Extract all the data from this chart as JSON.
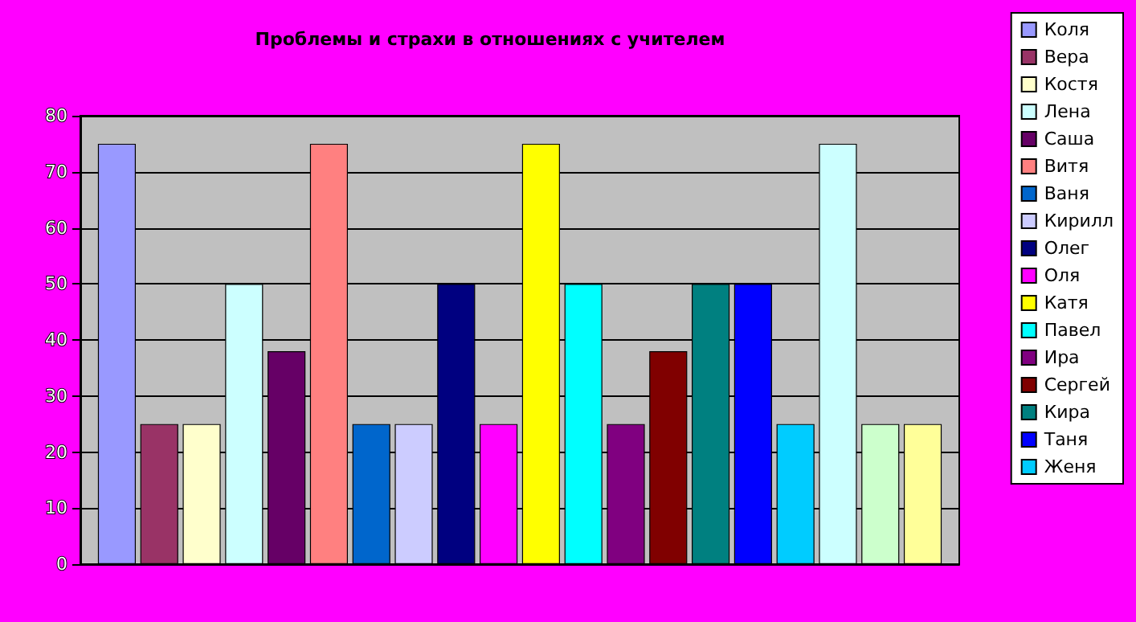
{
  "chart_data": {
    "type": "bar",
    "title": "Проблемы и страхи в отношениях с учителем",
    "categories": [
      null
    ],
    "ylim": [
      0,
      80
    ],
    "yticks": [
      0,
      10,
      20,
      30,
      40,
      50,
      60,
      70,
      80
    ],
    "grid": "y",
    "legend": "right",
    "series": [
      {
        "name": "Коля",
        "color": "#9999ff",
        "values": [
          75
        ]
      },
      {
        "name": "Вера",
        "color": "#993366",
        "values": [
          25
        ]
      },
      {
        "name": "Костя",
        "color": "#ffffcc",
        "values": [
          25
        ]
      },
      {
        "name": "Лена",
        "color": "#ccffff",
        "values": [
          50
        ]
      },
      {
        "name": "Саша",
        "color": "#660066",
        "values": [
          38
        ]
      },
      {
        "name": "Витя",
        "color": "#ff8080",
        "values": [
          75
        ]
      },
      {
        "name": "Ваня",
        "color": "#0066cc",
        "values": [
          25
        ]
      },
      {
        "name": "Кирилл",
        "color": "#ccccff",
        "values": [
          25
        ]
      },
      {
        "name": "Олег",
        "color": "#000080",
        "values": [
          50
        ]
      },
      {
        "name": "Оля",
        "color": "#ff00ff",
        "values": [
          25
        ]
      },
      {
        "name": "Катя",
        "color": "#ffff00",
        "values": [
          75
        ]
      },
      {
        "name": "Павел",
        "color": "#00ffff",
        "values": [
          50
        ]
      },
      {
        "name": "Ира",
        "color": "#800080",
        "values": [
          25
        ]
      },
      {
        "name": "Сергей",
        "color": "#800000",
        "values": [
          38
        ]
      },
      {
        "name": "Кира",
        "color": "#008080",
        "values": [
          50
        ]
      },
      {
        "name": "Таня",
        "color": "#0000ff",
        "values": [
          50
        ]
      },
      {
        "name": "Женя",
        "color": "#00ccff",
        "values": [
          25
        ]
      },
      {
        "color": "#ccffff",
        "values": [
          75
        ]
      },
      {
        "color": "#ccffcc",
        "values": [
          25
        ]
      },
      {
        "color": "#ffff99",
        "values": [
          25
        ]
      }
    ]
  }
}
